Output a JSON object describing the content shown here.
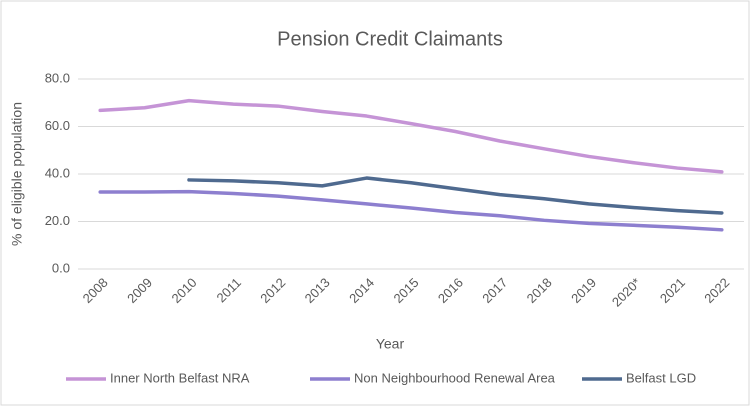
{
  "chart_data": {
    "type": "line",
    "title": "Pension Credit Claimants",
    "x_label": "Year",
    "y_label": "% of eligible population",
    "categories": [
      "2008",
      "2009",
      "2010",
      "2011",
      "2012",
      "2013",
      "2014",
      "2015",
      "2016",
      "2017",
      "2018",
      "2019",
      "2020*",
      "2021",
      "2022"
    ],
    "series": [
      {
        "name": "Inner North Belfast NRA",
        "color": "#c594d6",
        "values": [
          66.8,
          67.9,
          70.9,
          69.4,
          68.6,
          66.3,
          64.4,
          61.2,
          57.9,
          53.9,
          50.6,
          47.4,
          44.8,
          42.5,
          40.9
        ]
      },
      {
        "name": "Non Neighbourhood Renewal Area",
        "color": "#8d7fcf",
        "values": [
          32.4,
          32.4,
          32.6,
          31.8,
          30.7,
          29.1,
          27.4,
          25.7,
          23.8,
          22.4,
          20.5,
          19.2,
          18.4,
          17.6,
          16.5
        ]
      },
      {
        "name": "Belfast LGD",
        "color": "#4f6a8f",
        "values": [
          null,
          null,
          37.5,
          37.1,
          36.3,
          35.0,
          38.3,
          36.3,
          33.8,
          31.3,
          29.6,
          27.4,
          25.9,
          24.6,
          23.6
        ]
      }
    ],
    "ylim": [
      0,
      80
    ],
    "yticks": [
      {
        "value": 0,
        "label": "0.0"
      },
      {
        "value": 20,
        "label": "20.0"
      },
      {
        "value": 40,
        "label": "40.0"
      },
      {
        "value": 60,
        "label": "60.0"
      },
      {
        "value": 80,
        "label": "80.0"
      }
    ],
    "grid": true,
    "legend": "bottom"
  }
}
